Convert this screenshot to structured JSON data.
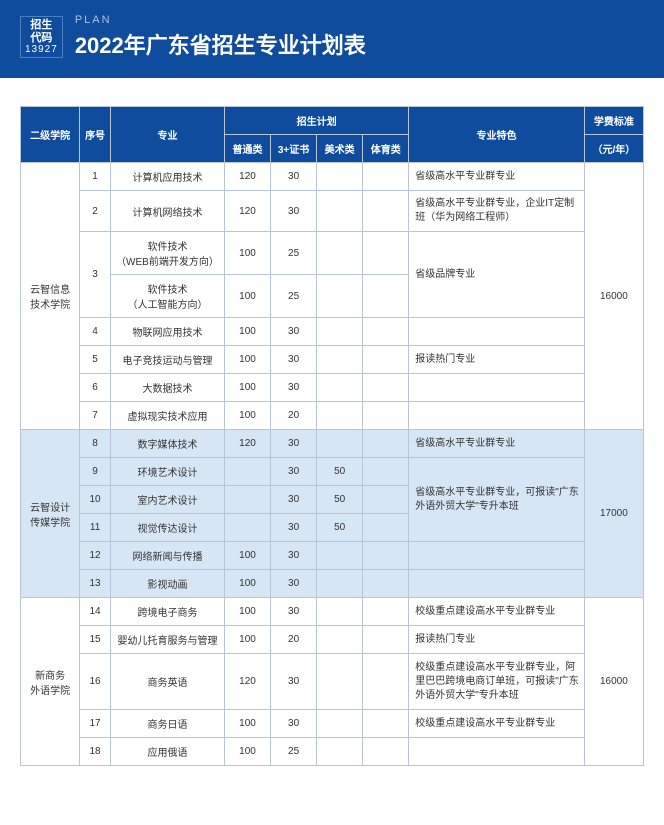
{
  "header": {
    "badge_line1": "招生",
    "badge_line2": "代码",
    "badge_code": "13927",
    "plan_label": "PLAN",
    "title": "2022年广东省招生专业计划表"
  },
  "colors": {
    "header_bg": "#0f4c9e",
    "header_text": "#ffffff",
    "border": "#b8c5d6",
    "alt_row_bg": "#d6e6f5"
  },
  "table": {
    "headers": {
      "college": "二级学院",
      "index": "序号",
      "major": "专业",
      "plan_group": "招生计划",
      "plan_normal": "普通类",
      "plan_3cert": "3+证书",
      "plan_art": "美术类",
      "plan_sport": "体育类",
      "feature": "专业特色",
      "tuition": "学费标准",
      "tuition_unit": "（元/年）"
    },
    "groups": [
      {
        "college": "云智信息\n技术学院",
        "tuition": "16000",
        "alt": false,
        "rows": [
          {
            "idx": "1",
            "major": "计算机应用技术",
            "n": "120",
            "c": "30",
            "a": "",
            "s": "",
            "feat": "省级高水平专业群专业",
            "feat_rowspan": 1
          },
          {
            "idx": "2",
            "major": "计算机网络技术",
            "n": "120",
            "c": "30",
            "a": "",
            "s": "",
            "feat": "省级高水平专业群专业，企业IT定制班（华为网络工程师）",
            "feat_rowspan": 1
          },
          {
            "idx": "3",
            "idx_rowspan": 2,
            "major": "软件技术\n（WEB前端开发方向）",
            "n": "100",
            "c": "25",
            "a": "",
            "s": "",
            "feat": "省级品牌专业",
            "feat_rowspan": 2
          },
          {
            "major": "软件技术\n（人工智能方向）",
            "n": "100",
            "c": "25",
            "a": "",
            "s": ""
          },
          {
            "idx": "4",
            "major": "物联网应用技术",
            "n": "100",
            "c": "30",
            "a": "",
            "s": "",
            "feat": "",
            "feat_rowspan": 1
          },
          {
            "idx": "5",
            "major": "电子竞技运动与管理",
            "n": "100",
            "c": "30",
            "a": "",
            "s": "",
            "feat": "报读热门专业",
            "feat_rowspan": 1
          },
          {
            "idx": "6",
            "major": "大数据技术",
            "n": "100",
            "c": "30",
            "a": "",
            "s": "",
            "feat": "",
            "feat_rowspan": 1
          },
          {
            "idx": "7",
            "major": "虚拟现实技术应用",
            "n": "100",
            "c": "20",
            "a": "",
            "s": "",
            "feat": "",
            "feat_rowspan": 1
          }
        ]
      },
      {
        "college": "云智设计\n传媒学院",
        "tuition": "17000",
        "alt": true,
        "rows": [
          {
            "idx": "8",
            "major": "数字媒体技术",
            "n": "120",
            "c": "30",
            "a": "",
            "s": "",
            "feat": "省级高水平专业群专业",
            "feat_rowspan": 1
          },
          {
            "idx": "9",
            "major": "环境艺术设计",
            "n": "",
            "c": "30",
            "a": "50",
            "s": "",
            "feat": "省级高水平专业群专业，可报读\"广东外语外贸大学\"专升本班",
            "feat_rowspan": 3
          },
          {
            "idx": "10",
            "major": "室内艺术设计",
            "n": "",
            "c": "30",
            "a": "50",
            "s": ""
          },
          {
            "idx": "11",
            "major": "视觉传达设计",
            "n": "",
            "c": "30",
            "a": "50",
            "s": ""
          },
          {
            "idx": "12",
            "major": "网络新闻与传播",
            "n": "100",
            "c": "30",
            "a": "",
            "s": "",
            "feat": "",
            "feat_rowspan": 1
          },
          {
            "idx": "13",
            "major": "影视动画",
            "n": "100",
            "c": "30",
            "a": "",
            "s": "",
            "feat": "",
            "feat_rowspan": 1
          }
        ]
      },
      {
        "college": "新商务\n外语学院",
        "tuition": "16000",
        "alt": false,
        "rows": [
          {
            "idx": "14",
            "major": "跨境电子商务",
            "n": "100",
            "c": "30",
            "a": "",
            "s": "",
            "feat": "校级重点建设高水平专业群专业",
            "feat_rowspan": 1
          },
          {
            "idx": "15",
            "major": "婴幼儿托育服务与管理",
            "n": "100",
            "c": "20",
            "a": "",
            "s": "",
            "feat": "报读热门专业",
            "feat_rowspan": 1
          },
          {
            "idx": "16",
            "major": "商务英语",
            "n": "120",
            "c": "30",
            "a": "",
            "s": "",
            "feat": "校级重点建设高水平专业群专业，阿里巴巴跨境电商订单班，可报读\"广东外语外贸大学\"专升本班",
            "feat_rowspan": 1,
            "tall": true
          },
          {
            "idx": "17",
            "major": "商务日语",
            "n": "100",
            "c": "30",
            "a": "",
            "s": "",
            "feat": "校级重点建设高水平专业群专业",
            "feat_rowspan": 1
          },
          {
            "idx": "18",
            "major": "应用俄语",
            "n": "100",
            "c": "25",
            "a": "",
            "s": "",
            "feat": "",
            "feat_rowspan": 1
          }
        ]
      }
    ]
  }
}
